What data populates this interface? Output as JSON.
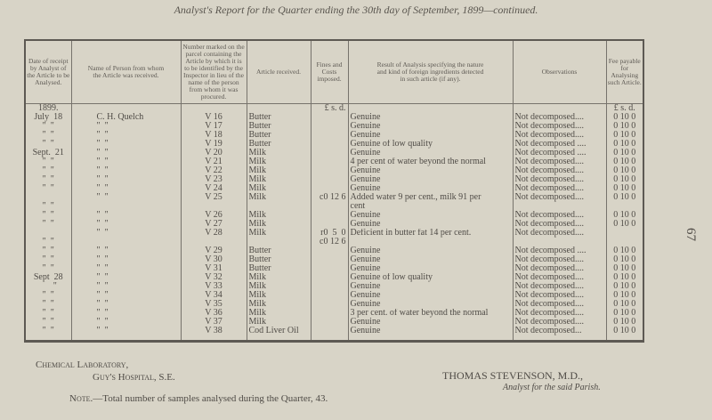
{
  "title": "Analyst's Report for the Quarter ending the 30th day of September, 1899—continued.",
  "page_number": "67",
  "headers": {
    "date": "Date of receipt by Analyst of the Article to be Analysed.",
    "name": "Name of Person from whom the Article was received.",
    "number": "Number marked on the parcel containing the Article by which it is to be identified by the Inspector in lieu of the name of the person from whom it was procured.",
    "article": "Article received.",
    "fines": "Fines and Costs imposed.",
    "result": "Result of Analysis specifying the nature and kind of foreign ingredients detected in such article (if any).",
    "observations": "Observations",
    "fee": "Fee payable for Analysing such Article."
  },
  "units_row": {
    "year": "1899.",
    "fines_units": "£ s. d.",
    "fee_units": "£ s. d."
  },
  "rows": [
    {
      "date": "July  18",
      "name": "C. H. Quelch",
      "number": "V 16",
      "article": "Butter",
      "fines": "",
      "result": "Genuine",
      "obs": "Not decomposed....",
      "fee": "0 10 0"
    },
    {
      "date": "\"  \"",
      "name": "\"  \"",
      "number": "V 17",
      "article": "Butter",
      "fines": "",
      "result": "Genuine",
      "obs": "Not decomposed....",
      "fee": "0 10 0"
    },
    {
      "date": "\"  \"",
      "name": "\"  \"",
      "number": "V 18",
      "article": "Butter",
      "fines": "",
      "result": "Genuine",
      "obs": "Not decomposed....",
      "fee": "0 10 0"
    },
    {
      "date": "\"  \"",
      "name": "\"  \"",
      "number": "V 19",
      "article": "Butter",
      "fines": "",
      "result": "Genuine of low quality",
      "obs": "Not decomposed ....",
      "fee": "0 10 0"
    },
    {
      "date": "Sept.  21",
      "name": "\"  \"",
      "number": "V 20",
      "article": "Milk",
      "fines": "",
      "result": "Genuine",
      "obs": "Not decomposed ....",
      "fee": "0 10 0"
    },
    {
      "date": "\"  \"",
      "name": "\"  \"",
      "number": "V 21",
      "article": "Milk",
      "fines": "",
      "result": "4 per cent of water beyond the normal",
      "obs": "Not decomposed....",
      "fee": "0 10 0"
    },
    {
      "date": "\"  \"",
      "name": "\"  \"",
      "number": "V 22",
      "article": "Milk",
      "fines": "",
      "result": "Genuine",
      "obs": "Not decomposed....",
      "fee": "0 10 0"
    },
    {
      "date": "\"  \"",
      "name": "\"  \"",
      "number": "V 23",
      "article": "Milk",
      "fines": "",
      "result": "Genuine",
      "obs": "Not decomposed....",
      "fee": "0 10 0"
    },
    {
      "date": "\"  \"",
      "name": "\"  \"",
      "number": "V 24",
      "article": "Milk",
      "fines": "",
      "result": "Genuine",
      "obs": "Not decomposed....",
      "fee": "0 10 0"
    },
    {
      "date": "",
      "name": "\"  \"",
      "number": "V 25",
      "article": "Milk",
      "fines": "c0 12 6",
      "result": "Added water 9 per cent., milk 91 per",
      "obs": "Not decomposed....",
      "fee": "0 10 0"
    },
    {
      "date": "\"  \"",
      "name": "",
      "number": "",
      "article": "",
      "fines": "",
      "result": "cent",
      "obs": "",
      "fee": ""
    },
    {
      "date": "\"  \"",
      "name": "\"  \"",
      "number": "V 26",
      "article": "Milk",
      "fines": "",
      "result": "Genuine",
      "obs": "Not decomposed....",
      "fee": "0 10 0"
    },
    {
      "date": "\"  \"",
      "name": "\"  \"",
      "number": "V 27",
      "article": "Milk",
      "fines": "",
      "result": "Genuine",
      "obs": "Not decomposed....",
      "fee": "0 10 0"
    },
    {
      "date": "",
      "name": "\"  \"",
      "number": "V 28",
      "article": "Milk",
      "fines": "r0  5  0",
      "result": "Deficient in butter fat 14 per cent.",
      "obs": "Not decomposed....",
      "fee": ""
    },
    {
      "date": "\"  \"",
      "name": "",
      "number": "",
      "article": "",
      "fines": "c0 12 6",
      "result": "",
      "obs": "",
      "fee": ""
    },
    {
      "date": "\"  \"",
      "name": "\"  \"",
      "number": "V 29",
      "article": "Butter",
      "fines": "",
      "result": "Genuine",
      "obs": "Not decomposed ....",
      "fee": "0 10 0"
    },
    {
      "date": "\"  \"",
      "name": "\"  \"",
      "number": "V 30",
      "article": "Butter",
      "fines": "",
      "result": "Genuine",
      "obs": "Not decomposed....",
      "fee": "0 10 0"
    },
    {
      "date": "\"  \"",
      "name": "\"  \"",
      "number": "V 31",
      "article": "Butter",
      "fines": "",
      "result": "Genuine",
      "obs": "Not decomposed....",
      "fee": "0 10 0"
    },
    {
      "date": "Sept  28",
      "name": "\"  \"",
      "number": "V 32",
      "article": "Milk",
      "fines": "",
      "result": "Genuine of low quality",
      "obs": "Not decomposed....",
      "fee": "0 10 0"
    },
    {
      "date": "      \"",
      "name": "\"  \"",
      "number": "V 33",
      "article": "Milk",
      "fines": "",
      "result": "Genuine",
      "obs": "Not decomposed....",
      "fee": "0 10 0"
    },
    {
      "date": "\"  \"",
      "name": "\"  \"",
      "number": "V 34",
      "article": "Milk",
      "fines": "",
      "result": "Genuine",
      "obs": "Not decomposed....",
      "fee": "0 10 0"
    },
    {
      "date": "\"  \"",
      "name": "\"  \"",
      "number": "V 35",
      "article": "Milk",
      "fines": "",
      "result": "Genuine",
      "obs": "Not decomposed....",
      "fee": "0 10 0"
    },
    {
      "date": "\"  \"",
      "name": "\"  \"",
      "number": "V 36",
      "article": "Milk",
      "fines": "",
      "result": "3 per cent. of water beyond the normal",
      "obs": "Not decomposed....",
      "fee": "0 10 0"
    },
    {
      "date": "\"  \"",
      "name": "\"  \"",
      "number": "V 37",
      "article": "Milk",
      "fines": "",
      "result": "Genuine",
      "obs": "Not decomposed....",
      "fee": "0 10 0"
    },
    {
      "date": "\"  \"",
      "name": "\"  \"",
      "number": "V 38",
      "article": "Cod Liver Oil",
      "fines": "",
      "result": "Genuine",
      "obs": "Not decomposed...",
      "fee": "0 10 0"
    }
  ],
  "footer": {
    "lab_line1": "Chemical Laboratory,",
    "lab_line2": "Guy's Hospital, S.E.",
    "signature": "THOMAS STEVENSON, M.D.,",
    "signature_title": "Analyst for the said Parish.",
    "note_label": "Note.",
    "note_text": "—Total number of samples analysed during the Quarter, 43."
  }
}
